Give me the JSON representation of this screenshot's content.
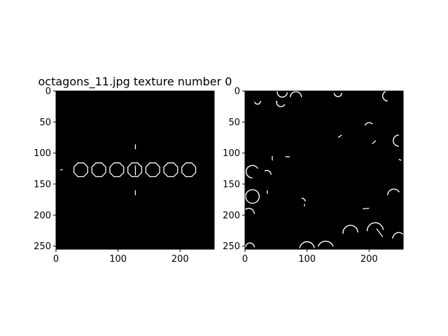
{
  "chart_data": [
    {
      "type": "image",
      "title": "octagons_11.jpg texture number 0",
      "xlim": [
        0,
        255
      ],
      "ylim": [
        255,
        0
      ],
      "xticks": [
        0,
        100,
        200
      ],
      "yticks": [
        0,
        50,
        100,
        150,
        200,
        250
      ],
      "background": "#000000",
      "line_color": "#ffffff",
      "octagons": [
        {
          "cx": 40,
          "cy": 127,
          "r": 12
        },
        {
          "cx": 69,
          "cy": 127,
          "r": 12
        },
        {
          "cx": 98,
          "cy": 127,
          "r": 12
        },
        {
          "cx": 127,
          "cy": 127,
          "r": 12
        },
        {
          "cx": 156,
          "cy": 127,
          "r": 12
        },
        {
          "cx": 185,
          "cy": 127,
          "r": 12
        },
        {
          "cx": 214,
          "cy": 127,
          "r": 12
        }
      ],
      "segments": [
        {
          "x1": 128,
          "y1": 86,
          "x2": 128,
          "y2": 94
        },
        {
          "x1": 128,
          "y1": 120,
          "x2": 128,
          "y2": 136
        },
        {
          "x1": 128,
          "y1": 160,
          "x2": 128,
          "y2": 168
        },
        {
          "x1": 7,
          "y1": 127,
          "x2": 11,
          "y2": 127
        }
      ]
    },
    {
      "type": "image",
      "title": "",
      "xlim": [
        0,
        255
      ],
      "ylim": [
        255,
        0
      ],
      "xticks": [
        0,
        100,
        200
      ],
      "yticks": [
        0,
        50,
        100,
        150,
        200,
        250
      ],
      "background": "#000000",
      "line_color": "#ffffff",
      "arcs": [
        {
          "cx": 12,
          "cy": 130,
          "r": 10,
          "a0": 90,
          "a1": 330
        },
        {
          "cx": 12,
          "cy": 170,
          "r": 11,
          "a0": 0,
          "a1": 360
        },
        {
          "cx": 6,
          "cy": 198,
          "r": 9,
          "a0": 200,
          "a1": 360
        },
        {
          "cx": 60,
          "cy": 2,
          "r": 8,
          "a0": 0,
          "a1": 200
        },
        {
          "cx": 82,
          "cy": 10,
          "r": 9,
          "a0": 180,
          "a1": 360
        },
        {
          "cx": 58,
          "cy": 18,
          "r": 7,
          "a0": 30,
          "a1": 200
        },
        {
          "cx": 20,
          "cy": 16,
          "r": 5,
          "a0": 0,
          "a1": 160
        },
        {
          "cx": 170,
          "cy": 228,
          "r": 12,
          "a0": 170,
          "a1": 360
        },
        {
          "cx": 210,
          "cy": 226,
          "r": 13,
          "a0": 180,
          "a1": 350
        },
        {
          "cx": 248,
          "cy": 238,
          "r": 10,
          "a0": 180,
          "a1": 340
        },
        {
          "cx": 100,
          "cy": 255,
          "r": 12,
          "a0": 190,
          "a1": 350
        },
        {
          "cx": 130,
          "cy": 255,
          "r": 13,
          "a0": 200,
          "a1": 340
        },
        {
          "cx": 8,
          "cy": 252,
          "r": 7,
          "a0": 180,
          "a1": 360
        },
        {
          "cx": 248,
          "cy": 80,
          "r": 9,
          "a0": 90,
          "a1": 270
        },
        {
          "cx": 240,
          "cy": 168,
          "r": 10,
          "a0": 180,
          "a1": 330
        },
        {
          "cx": 230,
          "cy": 8,
          "r": 8,
          "a0": 90,
          "a1": 250
        },
        {
          "cx": 150,
          "cy": 3,
          "r": 6,
          "a0": 0,
          "a1": 180
        },
        {
          "cx": 35,
          "cy": 135,
          "r": 7,
          "a0": 240,
          "a1": 360
        },
        {
          "cx": 200,
          "cy": 58,
          "r": 7,
          "a0": 200,
          "a1": 320
        },
        {
          "cx": 92,
          "cy": 178,
          "r": 5,
          "a0": 260,
          "a1": 360
        }
      ],
      "segments": [
        {
          "x1": 44,
          "y1": 105,
          "x2": 44,
          "y2": 112
        },
        {
          "x1": 65,
          "y1": 106,
          "x2": 72,
          "y2": 106
        },
        {
          "x1": 150,
          "y1": 75,
          "x2": 156,
          "y2": 71
        },
        {
          "x1": 205,
          "y1": 85,
          "x2": 211,
          "y2": 80
        },
        {
          "x1": 96,
          "y1": 186,
          "x2": 96,
          "y2": 182
        },
        {
          "x1": 190,
          "y1": 190,
          "x2": 200,
          "y2": 189
        },
        {
          "x1": 36,
          "y1": 160,
          "x2": 36,
          "y2": 166
        },
        {
          "x1": 212,
          "y1": 222,
          "x2": 222,
          "y2": 235
        },
        {
          "x1": 248,
          "y1": 110,
          "x2": 252,
          "y2": 112
        }
      ]
    }
  ]
}
